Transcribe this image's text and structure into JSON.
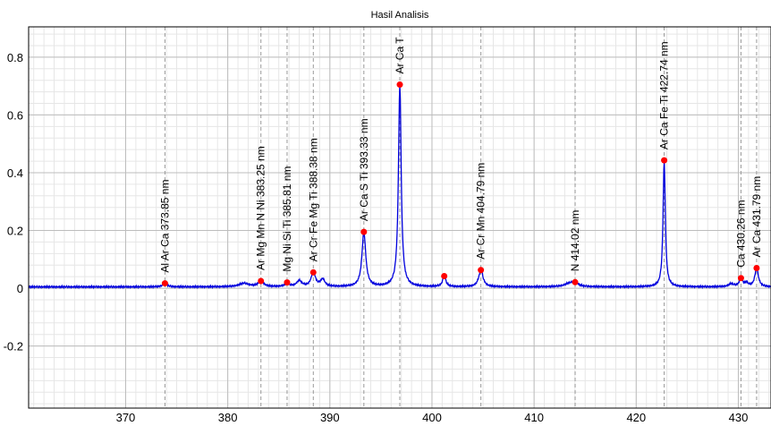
{
  "chart_data": {
    "type": "line",
    "title": "Hasil Analisis",
    "xlabel": "",
    "ylabel": "",
    "xlim": [
      360.5,
      433.2
    ],
    "ylim": [
      -0.415,
      0.905
    ],
    "xticks": [
      370,
      380,
      390,
      400,
      410,
      420,
      430
    ],
    "yticks": [
      -0.2,
      0,
      0.2,
      0.4,
      0.6,
      0.8
    ],
    "grid": true,
    "legend": "none",
    "colors": {
      "line": "#0000dd",
      "marker": "#ff0000",
      "guide": "#999999"
    },
    "baseline_noise": [
      0.004,
      0.006,
      0.003,
      0.007,
      0.005,
      0.002,
      0.006,
      0.004,
      0.008,
      0.003,
      0.005,
      0.006,
      0.002,
      0.007,
      0.004,
      0.005,
      0.003,
      0.006,
      0.008,
      0.004,
      0.002,
      0.005,
      0.007,
      0.003,
      0.006,
      0.004,
      0.005,
      0.002,
      0.007,
      0.006,
      0.003,
      0.005
    ],
    "spectrum_peaks": [
      {
        "x": 373.85,
        "y": 0.012,
        "w": 0.25
      },
      {
        "x": 381.6,
        "y": 0.012,
        "w": 0.6
      },
      {
        "x": 383.25,
        "y": 0.02,
        "w": 0.3
      },
      {
        "x": 385.81,
        "y": 0.01,
        "w": 0.3
      },
      {
        "x": 387.0,
        "y": 0.02,
        "w": 0.3
      },
      {
        "x": 388.38,
        "y": 0.05,
        "w": 0.25
      },
      {
        "x": 389.3,
        "y": 0.025,
        "w": 0.25
      },
      {
        "x": 393.33,
        "y": 0.19,
        "w": 0.22
      },
      {
        "x": 396.85,
        "y": 0.7,
        "w": 0.16
      },
      {
        "x": 401.2,
        "y": 0.038,
        "w": 0.18
      },
      {
        "x": 404.79,
        "y": 0.058,
        "w": 0.25
      },
      {
        "x": 413.5,
        "y": 0.012,
        "w": 0.6
      },
      {
        "x": 414.02,
        "y": 0.012,
        "w": 0.3
      },
      {
        "x": 422.74,
        "y": 0.44,
        "w": 0.13
      },
      {
        "x": 429.3,
        "y": 0.01,
        "w": 0.3
      },
      {
        "x": 430.26,
        "y": 0.028,
        "w": 0.2
      },
      {
        "x": 430.8,
        "y": 0.012,
        "w": 0.2
      },
      {
        "x": 431.79,
        "y": 0.065,
        "w": 0.2
      }
    ],
    "marked_peaks": [
      {
        "x": 373.85,
        "y": 0.017,
        "label": "Al Ar Ca 373.85 nm"
      },
      {
        "x": 383.25,
        "y": 0.025,
        "label": "Ar Mg Mn N Ni 383.25 nm"
      },
      {
        "x": 385.81,
        "y": 0.02,
        "label": "Mg Ni Si Ti 385.81 nm"
      },
      {
        "x": 388.38,
        "y": 0.055,
        "label": "Ar Cr Fe Mg Ti 388.38 nm"
      },
      {
        "x": 393.33,
        "y": 0.195,
        "label": "Ar Ca S Ti 393.33 nm"
      },
      {
        "x": 396.85,
        "y": 0.705,
        "label": "Ar Ca T"
      },
      {
        "x": 401.2,
        "y": 0.042,
        "label": ""
      },
      {
        "x": 404.79,
        "y": 0.063,
        "label": "Ar Cr Mn 404.79 nm"
      },
      {
        "x": 414.02,
        "y": 0.021,
        "label": "N 414.02 nm"
      },
      {
        "x": 422.74,
        "y": 0.443,
        "label": "Ar Ca Fe Ti 422.74 nm"
      },
      {
        "x": 430.26,
        "y": 0.035,
        "label": "Ca 430.26 nm"
      },
      {
        "x": 431.79,
        "y": 0.07,
        "label": "Ar Ca 431.79 nm"
      }
    ]
  }
}
